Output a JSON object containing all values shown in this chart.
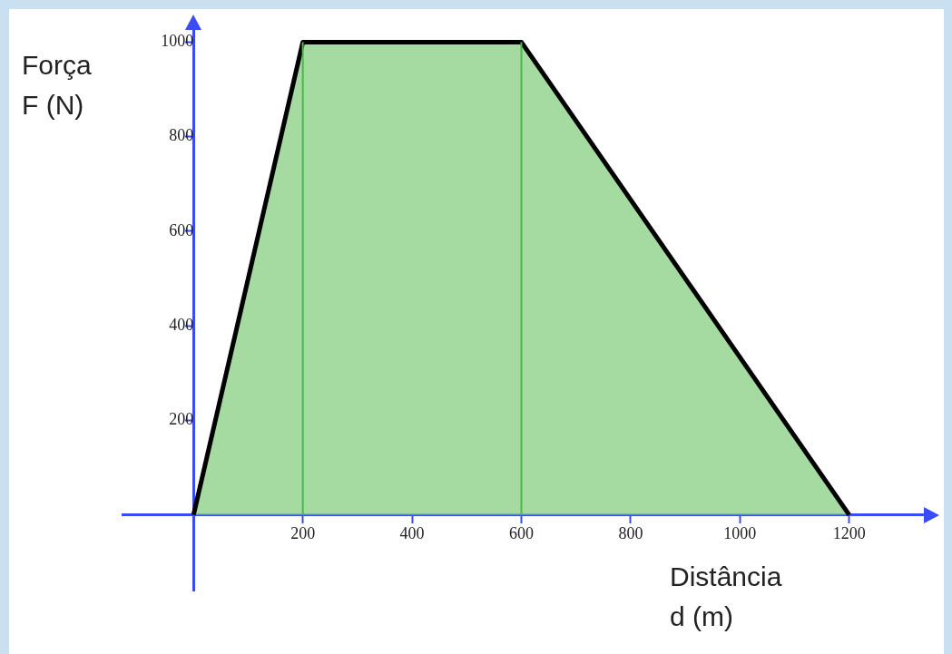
{
  "chart_data": {
    "type": "area",
    "xlabel": "Distância d (m)",
    "ylabel": "Força F (N)",
    "x": [
      0,
      200,
      600,
      1200
    ],
    "series": [
      {
        "color": "#8fd18a",
        "values": [
          0,
          1000,
          1000,
          0
        ]
      }
    ],
    "xlim": [
      -130,
      1340
    ],
    "ylim": [
      -160,
      1030
    ],
    "xticks": [
      200,
      400,
      600,
      800,
      1000,
      1200
    ],
    "yticks": [
      200,
      400,
      600,
      800,
      1000
    ],
    "ref_lines": [
      {
        "axis": "x",
        "value": 200,
        "color": "#4cb84c"
      },
      {
        "axis": "x",
        "value": 600,
        "color": "#4cb84c"
      }
    ],
    "grid": false,
    "legend": false
  }
}
